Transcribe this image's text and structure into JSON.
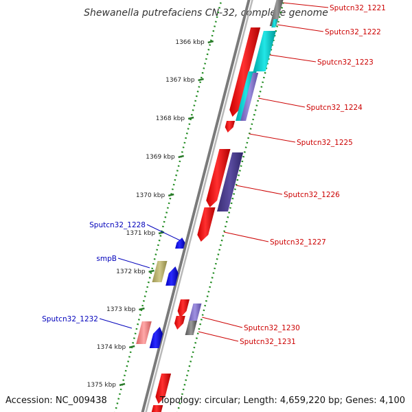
{
  "title": "Shewanella putrefaciens CN-32, complete genome",
  "footer": {
    "accession": "Accession: NC_009438",
    "topology": "Topology: circular; Length: 4,659,220 bp; Genes: 4,100"
  },
  "colors": {
    "backbone": "#8a8a8a",
    "tick": "#2a7a2a",
    "dot": "#1e8a1e",
    "label_forward": "#cc0000",
    "label_reverse": "#0000bb",
    "cds_red": "#ee0000",
    "cds_blue": "#0000ee",
    "cog_cyan": "#00cccc",
    "cog_purple": "#4a3c8c",
    "cog_khaki": "#b5ae64",
    "cog_pink": "#ee8080",
    "cog_grey": "#707070",
    "cog_lavender": "#7e6ec4"
  },
  "ticks": [
    {
      "label": "1366 kbp"
    },
    {
      "label": "1367 kbp"
    },
    {
      "label": "1368 kbp"
    },
    {
      "label": "1369 kbp"
    },
    {
      "label": "1370 kbp"
    },
    {
      "label": "1371 kbp"
    },
    {
      "label": "1372 kbp"
    },
    {
      "label": "1373 kbp"
    },
    {
      "label": "1374 kbp"
    },
    {
      "label": "1375 kbp"
    }
  ],
  "gene_labels": {
    "forward": [
      {
        "name": "Sputcn32_1221"
      },
      {
        "name": "Sputcn32_1222"
      },
      {
        "name": "Sputcn32_1223"
      },
      {
        "name": "Sputcn32_1224"
      },
      {
        "name": "Sputcn32_1225"
      },
      {
        "name": "Sputcn32_1226"
      },
      {
        "name": "Sputcn32_1227"
      },
      {
        "name": "Sputcn32_1230"
      },
      {
        "name": "Sputcn32_1231"
      }
    ],
    "reverse": [
      {
        "name": "Sputcn32_1228"
      },
      {
        "name": "smpB"
      },
      {
        "name": "Sputcn32_1232"
      }
    ]
  }
}
